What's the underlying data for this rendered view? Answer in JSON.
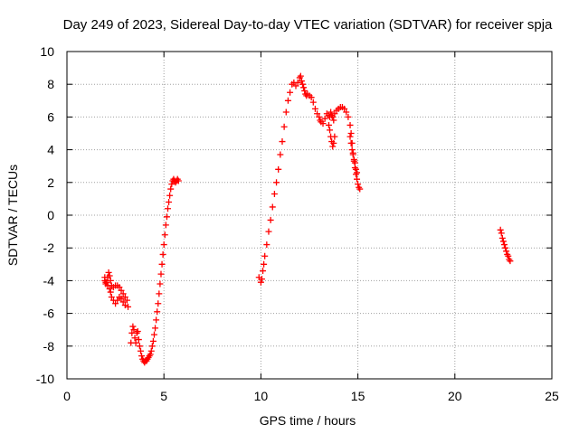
{
  "chart_data": {
    "type": "scatter",
    "title": "Day 249 of 2023, Sidereal Day-to-day VTEC variation (SDTVAR) for receiver spja",
    "xlabel": "GPS time / hours",
    "ylabel": "SDTVAR / TECUs",
    "xlim": [
      0,
      25
    ],
    "ylim": [
      -10,
      10
    ],
    "x_ticks": [
      0,
      5,
      10,
      15,
      20,
      25
    ],
    "y_ticks": [
      -10,
      -8,
      -6,
      -4,
      -2,
      0,
      2,
      4,
      6,
      8,
      10
    ],
    "x_tick_labels": [
      "0",
      "5",
      "10",
      "15",
      "20",
      "25"
    ],
    "y_tick_labels": [
      "-10",
      "-8",
      "-6",
      "-4",
      "-2",
      "0",
      "2",
      "4",
      "6",
      "8",
      "10"
    ],
    "grid": true,
    "marker": "+",
    "colors": {
      "series": "#ff0000",
      "axes": "#000000",
      "grid": "#a0a0a0"
    },
    "series": [
      {
        "name": "SDTVAR",
        "segments": [
          {
            "x": [
              1.95,
              2.0,
              2.05,
              2.1,
              2.15,
              2.2,
              2.25,
              2.3,
              2.4,
              2.5,
              2.6,
              2.7,
              2.8,
              2.9,
              3.0,
              3.1,
              3.15,
              3.0,
              2.9,
              2.8,
              2.7,
              2.6,
              2.5,
              2.4,
              2.3,
              2.25,
              2.2,
              2.1,
              2.0,
              1.95
            ],
            "y": [
              -4.0,
              -4.2,
              -4.1,
              -3.8,
              -3.5,
              -3.7,
              -4.0,
              -4.3,
              -4.4,
              -4.3,
              -4.3,
              -4.4,
              -4.6,
              -4.8,
              -5.0,
              -5.2,
              -5.6,
              -5.5,
              -5.3,
              -5.1,
              -5.0,
              -5.2,
              -5.4,
              -5.2,
              -5.0,
              -4.7,
              -4.5,
              -4.3,
              -4.1,
              -3.8
            ]
          },
          {
            "x": [
              3.3,
              3.35,
              3.4,
              3.45,
              3.5,
              3.55,
              3.6,
              3.65,
              3.7,
              3.75,
              3.8,
              3.85,
              3.9,
              3.95,
              4.0,
              4.05,
              4.1,
              4.15,
              4.2,
              4.25,
              4.3,
              4.35,
              4.4,
              4.45,
              4.5,
              4.55,
              4.6,
              4.65,
              4.7,
              4.75,
              4.8,
              4.85,
              4.9,
              4.95,
              5.0,
              5.05,
              5.1,
              5.15,
              5.2,
              5.25,
              5.3,
              5.35,
              5.4,
              5.45,
              5.5,
              5.55,
              5.6,
              5.65,
              5.7,
              5.75
            ],
            "y": [
              -7.8,
              -7.2,
              -6.8,
              -7.0,
              -7.5,
              -7.8,
              -7.2,
              -7.1,
              -7.6,
              -8.0,
              -8.3,
              -8.6,
              -8.8,
              -8.9,
              -9.0,
              -8.9,
              -8.9,
              -8.8,
              -8.7,
              -8.6,
              -8.5,
              -8.3,
              -8.0,
              -7.7,
              -7.3,
              -6.9,
              -6.4,
              -5.9,
              -5.4,
              -4.8,
              -4.2,
              -3.6,
              -3.0,
              -2.4,
              -1.8,
              -1.2,
              -0.6,
              -0.1,
              0.4,
              0.8,
              1.2,
              1.6,
              1.9,
              2.1,
              2.2,
              2.1,
              2.0,
              2.1,
              2.2,
              2.1
            ]
          },
          {
            "x": [
              9.9,
              10.0,
              10.05,
              10.1,
              10.15,
              10.2,
              10.3,
              10.4,
              10.5,
              10.6,
              10.7,
              10.8,
              10.9,
              11.0,
              11.1,
              11.2,
              11.3,
              11.4,
              11.5,
              11.6,
              11.7,
              11.8,
              11.9,
              12.0,
              12.05,
              12.1,
              12.15,
              12.2,
              12.25,
              12.3,
              12.35,
              12.4,
              12.5,
              12.6,
              12.7,
              12.8,
              12.9,
              13.0,
              13.05,
              13.1,
              13.2,
              13.3,
              13.4,
              13.5,
              13.55,
              13.6,
              13.65,
              13.7,
              13.75,
              13.8,
              13.9,
              14.0,
              14.1,
              14.2,
              14.3,
              14.4,
              14.5,
              14.6,
              14.65,
              14.7,
              14.75,
              14.8,
              14.85,
              14.9,
              14.95,
              15.0,
              15.05,
              15.1
            ],
            "y": [
              -3.8,
              -4.1,
              -3.9,
              -3.4,
              -3.0,
              -2.5,
              -1.8,
              -1.0,
              -0.3,
              0.5,
              1.3,
              2.0,
              2.8,
              3.7,
              4.5,
              5.4,
              6.3,
              7.0,
              7.5,
              8.0,
              8.1,
              7.9,
              8.1,
              8.4,
              8.5,
              8.2,
              8.0,
              7.8,
              7.6,
              7.4,
              7.3,
              7.4,
              7.3,
              7.2,
              6.9,
              6.5,
              6.2,
              6.0,
              5.8,
              5.7,
              5.6,
              5.9,
              6.2,
              6.1,
              6.0,
              6.3,
              6.1,
              6.0,
              5.8,
              6.2,
              6.4,
              6.5,
              6.6,
              6.6,
              6.5,
              6.3,
              6.0,
              5.5,
              5.0,
              4.4,
              3.8,
              3.3,
              2.9,
              2.5,
              2.2,
              1.9,
              1.7,
              1.6
            ]
          },
          {
            "x": [
              13.5,
              13.55,
              13.6,
              13.65,
              13.7,
              13.75,
              13.8,
              14.6,
              14.65,
              14.7,
              14.75,
              14.8,
              14.85,
              14.9,
              14.95
            ],
            "y": [
              5.5,
              5.2,
              4.8,
              4.5,
              4.2,
              4.4,
              4.8,
              4.8,
              4.4,
              4.0,
              3.7,
              3.4,
              3.2,
              2.8,
              2.6
            ]
          },
          {
            "x": [
              22.35,
              22.4,
              22.45,
              22.5,
              22.55,
              22.6,
              22.65,
              22.7,
              22.75,
              22.8,
              22.85
            ],
            "y": [
              -0.9,
              -1.1,
              -1.4,
              -1.6,
              -1.8,
              -2.0,
              -2.2,
              -2.4,
              -2.5,
              -2.7,
              -2.8
            ]
          }
        ]
      }
    ]
  }
}
